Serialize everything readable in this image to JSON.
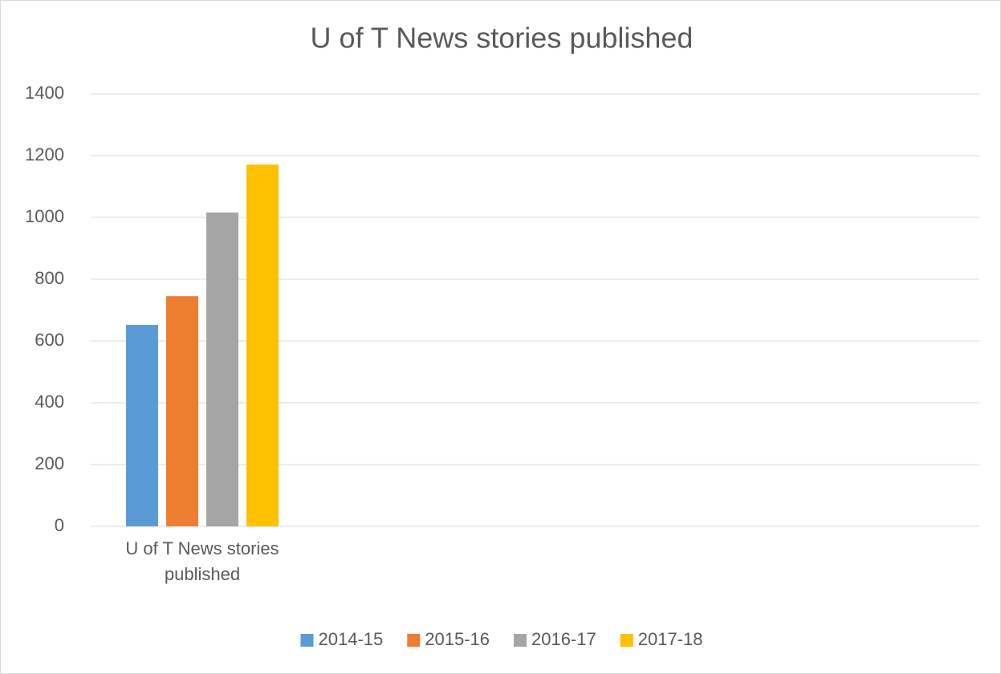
{
  "chart_data": {
    "type": "bar",
    "title": "U of T News stories published",
    "categories": [
      "U of T News stories published"
    ],
    "series": [
      {
        "name": "2014-15",
        "color": "#5b9bd5",
        "values": [
          652
        ]
      },
      {
        "name": "2015-16",
        "color": "#ed7d31",
        "values": [
          745
        ]
      },
      {
        "name": "2016-17",
        "color": "#a5a5a5",
        "values": [
          1016
        ]
      },
      {
        "name": "2017-18",
        "color": "#ffc000",
        "values": [
          1171
        ]
      }
    ],
    "ylim": [
      0,
      1400
    ],
    "yticks": [
      0,
      200,
      400,
      600,
      800,
      1000,
      1200,
      1400
    ],
    "grid": true,
    "legend": "bottom"
  }
}
